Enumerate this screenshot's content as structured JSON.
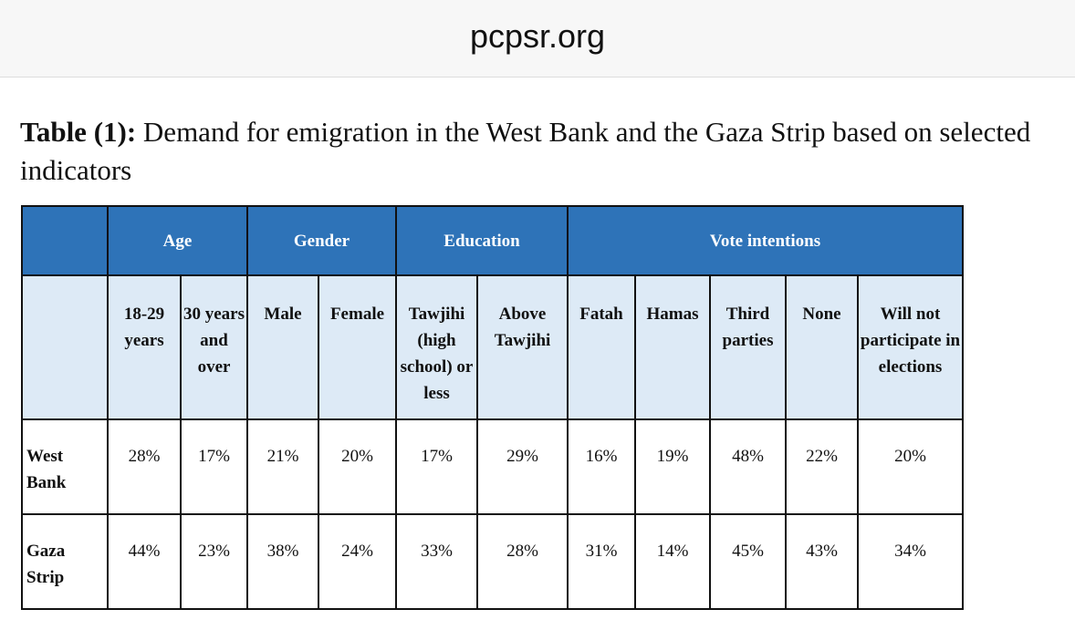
{
  "browser": {
    "site_title": "pcpsr.org"
  },
  "caption": {
    "label": "Table (1):",
    "text": " Demand for emigration in the West Bank and the Gaza Strip based on selected indicators"
  },
  "table": {
    "groups": [
      "Age",
      "Gender",
      "Education",
      "Vote intentions"
    ],
    "columns": [
      "18-29 years",
      "30 years and over",
      "Male",
      "Female",
      "Tawjihi (high school) or less",
      "Above Tawjihi",
      "Fatah",
      "Hamas",
      "Third parties",
      "None",
      "Will not participate in elections"
    ],
    "rows": [
      {
        "label": "West Bank",
        "values": [
          "28%",
          "17%",
          "21%",
          "20%",
          "17%",
          "29%",
          "16%",
          "19%",
          "48%",
          "22%",
          "20%"
        ]
      },
      {
        "label": "Gaza Strip",
        "values": [
          "44%",
          "23%",
          "38%",
          "24%",
          "33%",
          "28%",
          "31%",
          "14%",
          "45%",
          "43%",
          "34%"
        ]
      }
    ]
  }
}
